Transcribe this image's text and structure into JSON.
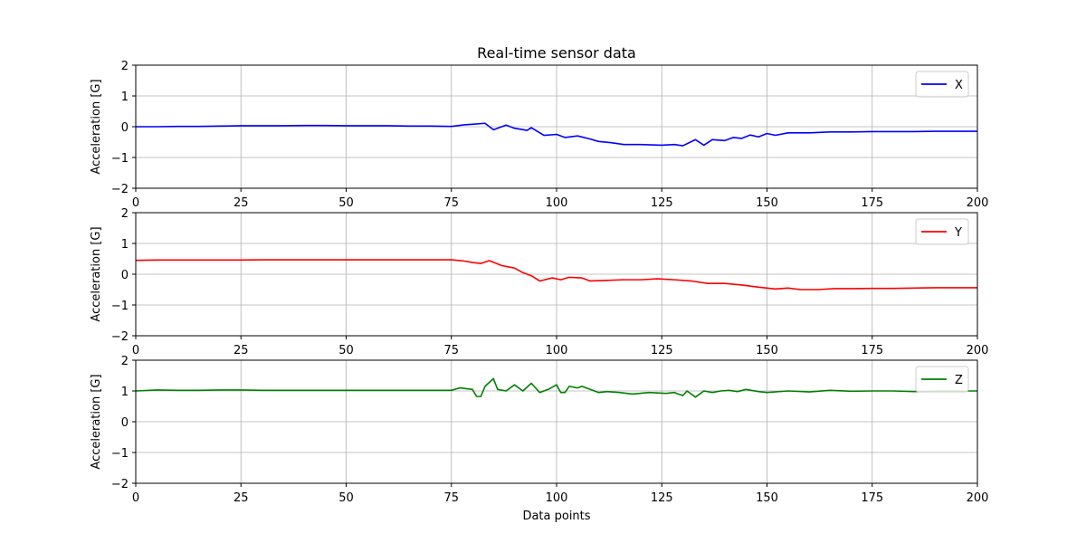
{
  "chart_data": {
    "type": "line",
    "title": "Real-time sensor data",
    "xlabel": "Data points",
    "shared_x_ticks": [
      "0",
      "25",
      "50",
      "75",
      "100",
      "125",
      "150",
      "175",
      "200"
    ],
    "x_tick_values": [
      0,
      25,
      50,
      75,
      100,
      125,
      150,
      175,
      200
    ],
    "y_tick_values": [
      -2,
      -1,
      0,
      1,
      2
    ],
    "y_tick_labels": [
      "−2",
      "−1",
      "0",
      "1",
      "2"
    ],
    "xlim": [
      0,
      200
    ],
    "ylim": [
      -2,
      2
    ],
    "grid": true,
    "panels": [
      {
        "ylabel": "Acceleration [G]",
        "legend": "X",
        "legend_position": "top-right",
        "color": "#0000ff",
        "points": [
          [
            0,
            0.0
          ],
          [
            5,
            0.0
          ],
          [
            10,
            0.01
          ],
          [
            15,
            0.01
          ],
          [
            20,
            0.02
          ],
          [
            25,
            0.03
          ],
          [
            30,
            0.03
          ],
          [
            35,
            0.03
          ],
          [
            40,
            0.04
          ],
          [
            45,
            0.04
          ],
          [
            50,
            0.03
          ],
          [
            55,
            0.03
          ],
          [
            60,
            0.03
          ],
          [
            65,
            0.02
          ],
          [
            70,
            0.02
          ],
          [
            75,
            0.01
          ],
          [
            78,
            0.06
          ],
          [
            80,
            0.08
          ],
          [
            83,
            0.11
          ],
          [
            85,
            -0.1
          ],
          [
            88,
            0.05
          ],
          [
            90,
            -0.05
          ],
          [
            93,
            -0.12
          ],
          [
            94,
            -0.03
          ],
          [
            97,
            -0.28
          ],
          [
            100,
            -0.25
          ],
          [
            102,
            -0.35
          ],
          [
            105,
            -0.3
          ],
          [
            108,
            -0.4
          ],
          [
            110,
            -0.48
          ],
          [
            113,
            -0.52
          ],
          [
            116,
            -0.58
          ],
          [
            120,
            -0.58
          ],
          [
            125,
            -0.6
          ],
          [
            128,
            -0.58
          ],
          [
            130,
            -0.62
          ],
          [
            133,
            -0.42
          ],
          [
            135,
            -0.6
          ],
          [
            137,
            -0.42
          ],
          [
            140,
            -0.45
          ],
          [
            142,
            -0.35
          ],
          [
            144,
            -0.38
          ],
          [
            146,
            -0.27
          ],
          [
            148,
            -0.33
          ],
          [
            150,
            -0.22
          ],
          [
            152,
            -0.28
          ],
          [
            155,
            -0.2
          ],
          [
            160,
            -0.2
          ],
          [
            165,
            -0.17
          ],
          [
            170,
            -0.17
          ],
          [
            175,
            -0.16
          ],
          [
            180,
            -0.16
          ],
          [
            185,
            -0.16
          ],
          [
            190,
            -0.15
          ],
          [
            195,
            -0.15
          ],
          [
            200,
            -0.15
          ]
        ]
      },
      {
        "ylabel": "Acceleration [G]",
        "legend": "Y",
        "legend_position": "top-right",
        "color": "#ff0000",
        "points": [
          [
            0,
            0.45
          ],
          [
            5,
            0.46
          ],
          [
            10,
            0.46
          ],
          [
            15,
            0.46
          ],
          [
            20,
            0.46
          ],
          [
            25,
            0.46
          ],
          [
            30,
            0.47
          ],
          [
            35,
            0.47
          ],
          [
            40,
            0.47
          ],
          [
            45,
            0.47
          ],
          [
            50,
            0.47
          ],
          [
            55,
            0.47
          ],
          [
            60,
            0.47
          ],
          [
            65,
            0.47
          ],
          [
            70,
            0.47
          ],
          [
            75,
            0.47
          ],
          [
            78,
            0.43
          ],
          [
            80,
            0.38
          ],
          [
            82,
            0.35
          ],
          [
            84,
            0.44
          ],
          [
            87,
            0.28
          ],
          [
            90,
            0.2
          ],
          [
            92,
            0.05
          ],
          [
            94,
            -0.05
          ],
          [
            96,
            -0.22
          ],
          [
            99,
            -0.12
          ],
          [
            101,
            -0.18
          ],
          [
            103,
            -0.1
          ],
          [
            106,
            -0.12
          ],
          [
            108,
            -0.22
          ],
          [
            112,
            -0.2
          ],
          [
            116,
            -0.18
          ],
          [
            120,
            -0.18
          ],
          [
            124,
            -0.15
          ],
          [
            128,
            -0.18
          ],
          [
            132,
            -0.22
          ],
          [
            136,
            -0.3
          ],
          [
            140,
            -0.3
          ],
          [
            144,
            -0.35
          ],
          [
            148,
            -0.42
          ],
          [
            152,
            -0.48
          ],
          [
            155,
            -0.45
          ],
          [
            158,
            -0.5
          ],
          [
            162,
            -0.5
          ],
          [
            166,
            -0.47
          ],
          [
            170,
            -0.47
          ],
          [
            175,
            -0.46
          ],
          [
            180,
            -0.46
          ],
          [
            185,
            -0.45
          ],
          [
            190,
            -0.44
          ],
          [
            195,
            -0.44
          ],
          [
            200,
            -0.44
          ]
        ]
      },
      {
        "ylabel": "Acceleration [G]",
        "legend": "Z",
        "legend_position": "top-right",
        "color": "#008000",
        "points": [
          [
            0,
            1.0
          ],
          [
            5,
            1.03
          ],
          [
            10,
            1.02
          ],
          [
            15,
            1.02
          ],
          [
            20,
            1.03
          ],
          [
            25,
            1.03
          ],
          [
            30,
            1.02
          ],
          [
            35,
            1.02
          ],
          [
            40,
            1.02
          ],
          [
            45,
            1.02
          ],
          [
            50,
            1.02
          ],
          [
            55,
            1.02
          ],
          [
            60,
            1.02
          ],
          [
            65,
            1.02
          ],
          [
            70,
            1.02
          ],
          [
            75,
            1.02
          ],
          [
            77,
            1.1
          ],
          [
            80,
            1.05
          ],
          [
            81,
            0.82
          ],
          [
            82,
            0.82
          ],
          [
            83,
            1.15
          ],
          [
            85,
            1.4
          ],
          [
            86,
            1.05
          ],
          [
            88,
            1.0
          ],
          [
            90,
            1.2
          ],
          [
            92,
            1.0
          ],
          [
            94,
            1.25
          ],
          [
            96,
            0.95
          ],
          [
            98,
            1.05
          ],
          [
            100,
            1.2
          ],
          [
            101,
            0.95
          ],
          [
            102,
            0.95
          ],
          [
            103,
            1.15
          ],
          [
            105,
            1.1
          ],
          [
            106,
            1.15
          ],
          [
            108,
            1.05
          ],
          [
            110,
            0.95
          ],
          [
            112,
            0.98
          ],
          [
            115,
            0.95
          ],
          [
            118,
            0.9
          ],
          [
            122,
            0.95
          ],
          [
            126,
            0.92
          ],
          [
            128,
            0.95
          ],
          [
            130,
            0.85
          ],
          [
            131,
            1.0
          ],
          [
            133,
            0.8
          ],
          [
            135,
            1.0
          ],
          [
            137,
            0.95
          ],
          [
            139,
            1.0
          ],
          [
            141,
            1.02
          ],
          [
            143,
            0.98
          ],
          [
            145,
            1.05
          ],
          [
            148,
            0.98
          ],
          [
            150,
            0.95
          ],
          [
            155,
            1.0
          ],
          [
            160,
            0.97
          ],
          [
            165,
            1.02
          ],
          [
            170,
            0.99
          ],
          [
            175,
            1.0
          ],
          [
            180,
            1.0
          ],
          [
            185,
            0.98
          ],
          [
            190,
            1.0
          ],
          [
            195,
            1.0
          ],
          [
            200,
            1.0
          ]
        ]
      }
    ]
  }
}
